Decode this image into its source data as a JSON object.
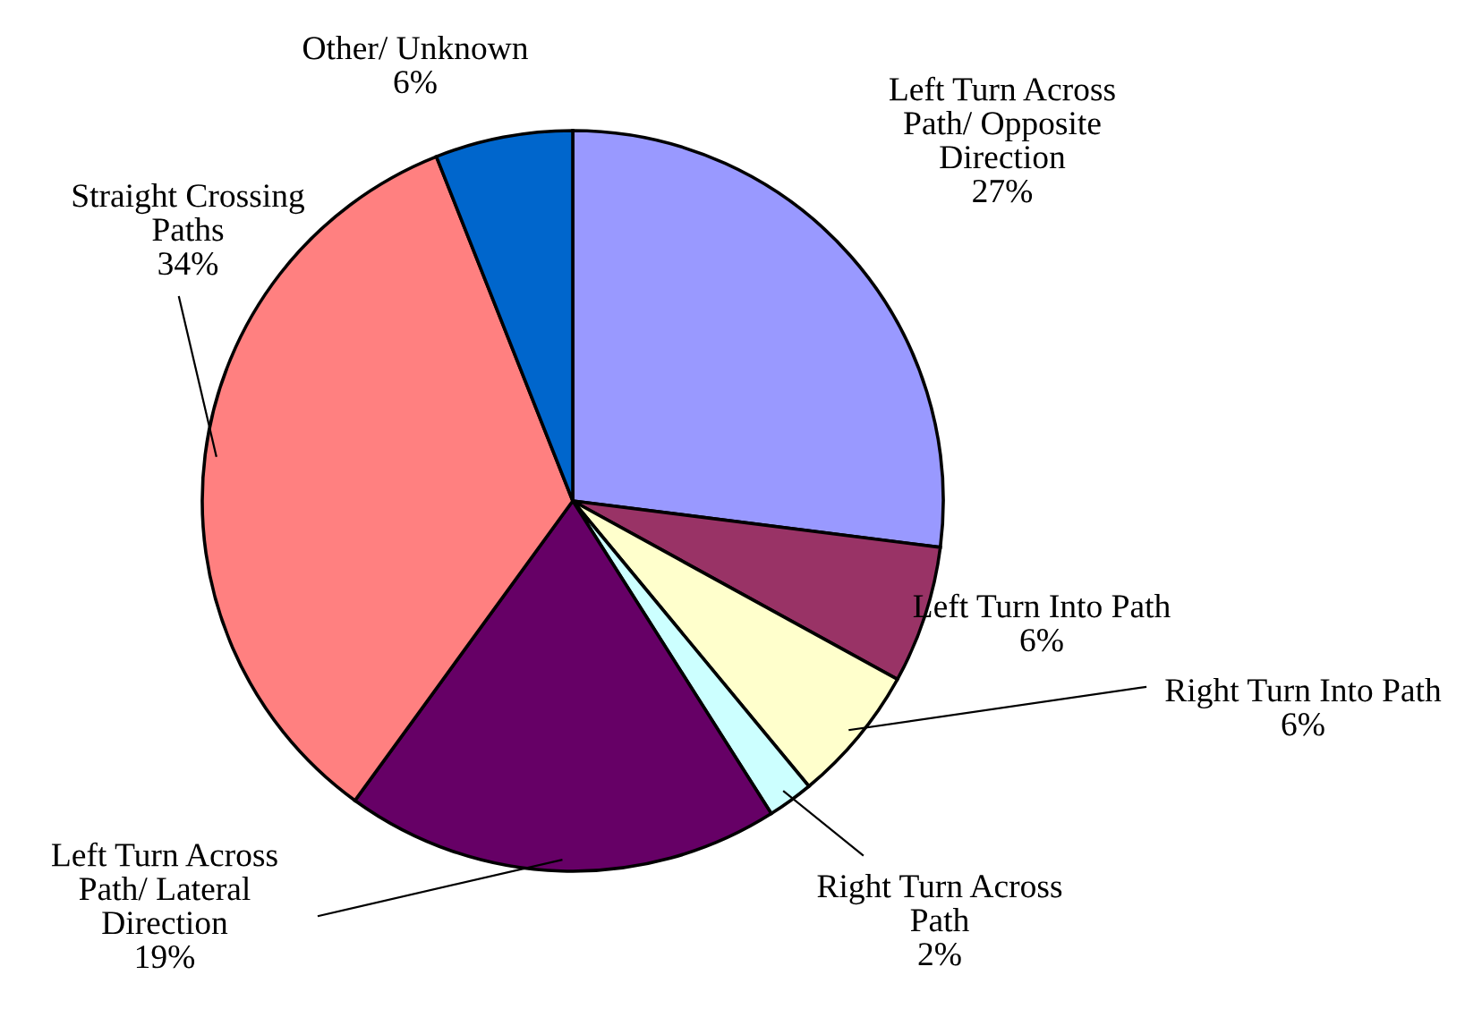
{
  "chart_data": {
    "type": "pie",
    "categories": [
      "Left Turn Across\nPath/ Opposite\nDirection",
      "Left Turn Into Path",
      "Right Turn Into Path",
      "Right Turn Across\nPath",
      "Left Turn Across\nPath/ Lateral\nDirection",
      "Straight Crossing\nPaths",
      "Other/ Unknown"
    ],
    "values": [
      27,
      6,
      6,
      2,
      19,
      34,
      6
    ],
    "value_labels": [
      "27%",
      "6%",
      "6%",
      "2%",
      "19%",
      "34%",
      "6%"
    ],
    "colors": [
      "#9999ff",
      "#993366",
      "#ffffcc",
      "#ccffff",
      "#660066",
      "#ff8080",
      "#0066cc"
    ],
    "legend": false
  }
}
